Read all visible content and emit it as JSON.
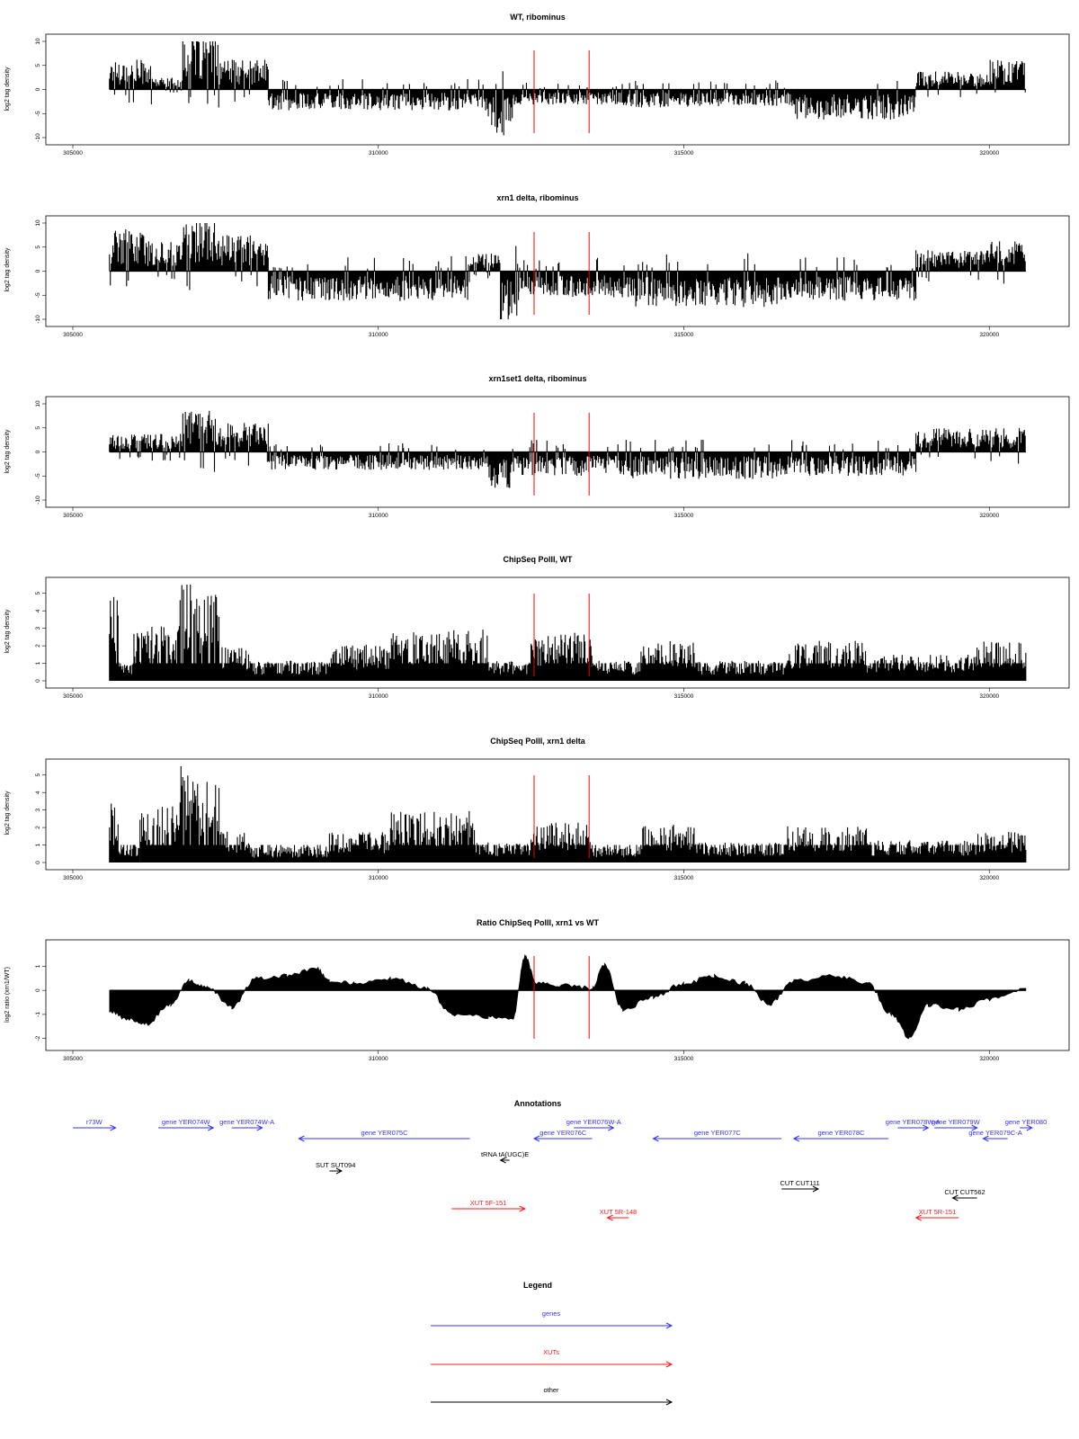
{
  "chart_data": [
    {
      "type": "bar",
      "title": "WT, ribominus",
      "ylabel": "log2 tag density",
      "xlim": [
        305000,
        320600
      ],
      "ylim": [
        -10,
        10
      ],
      "xticks": [
        "305000",
        "310000",
        "315000",
        "320000"
      ],
      "yticks": [
        "-10",
        "-5",
        "0",
        "5",
        "10"
      ],
      "markers_x": [
        312550,
        313450
      ],
      "profile": [
        {
          "from": 305600,
          "to": 306300,
          "level": 5
        },
        {
          "from": 306300,
          "to": 306800,
          "level": 2
        },
        {
          "from": 306800,
          "to": 307400,
          "level": 9
        },
        {
          "from": 307400,
          "to": 308200,
          "level": 5
        },
        {
          "from": 308200,
          "to": 311800,
          "level": -3.5
        },
        {
          "from": 311800,
          "to": 312200,
          "level": -8
        },
        {
          "from": 312200,
          "to": 314000,
          "level": -2.5
        },
        {
          "from": 314000,
          "to": 316800,
          "level": -3
        },
        {
          "from": 316800,
          "to": 318800,
          "level": -5
        },
        {
          "from": 318800,
          "to": 320000,
          "level": 3
        },
        {
          "from": 320000,
          "to": 320600,
          "level": 5
        }
      ]
    },
    {
      "type": "bar",
      "title": "xrn1 delta, ribominus",
      "ylabel": "log2 tag density",
      "xlim": [
        305000,
        320600
      ],
      "ylim": [
        -10,
        10
      ],
      "xticks": [
        "305000",
        "310000",
        "315000",
        "320000"
      ],
      "yticks": [
        "-10",
        "-5",
        "0",
        "5",
        "10"
      ],
      "markers_x": [
        312550,
        313450
      ],
      "profile": [
        {
          "from": 305600,
          "to": 306200,
          "level": 7
        },
        {
          "from": 306200,
          "to": 306800,
          "level": 5
        },
        {
          "from": 306800,
          "to": 307400,
          "level": 9
        },
        {
          "from": 307400,
          "to": 308200,
          "level": 6
        },
        {
          "from": 308200,
          "to": 311500,
          "level": -5
        },
        {
          "from": 311500,
          "to": 312000,
          "level": 3
        },
        {
          "from": 312000,
          "to": 312300,
          "level": -9
        },
        {
          "from": 312300,
          "to": 314200,
          "level": -4.5
        },
        {
          "from": 314200,
          "to": 316600,
          "level": -6
        },
        {
          "from": 316600,
          "to": 318800,
          "level": -5
        },
        {
          "from": 318800,
          "to": 320000,
          "level": 3.5
        },
        {
          "from": 320000,
          "to": 320600,
          "level": 5
        }
      ]
    },
    {
      "type": "bar",
      "title": "xrn1set1 delta, ribominus",
      "ylabel": "log2 tag density",
      "xlim": [
        305000,
        320600
      ],
      "ylim": [
        -10,
        10
      ],
      "xticks": [
        "305000",
        "310000",
        "315000",
        "320000"
      ],
      "yticks": [
        "-10",
        "-5",
        "0",
        "5",
        "10"
      ],
      "markers_x": [
        312550,
        313450
      ],
      "profile": [
        {
          "from": 305600,
          "to": 306300,
          "level": 3
        },
        {
          "from": 306300,
          "to": 306800,
          "level": 3
        },
        {
          "from": 306800,
          "to": 307400,
          "level": 7
        },
        {
          "from": 307400,
          "to": 308200,
          "level": 5
        },
        {
          "from": 308200,
          "to": 311800,
          "level": -3
        },
        {
          "from": 311800,
          "to": 312200,
          "level": -6
        },
        {
          "from": 312200,
          "to": 314000,
          "level": -4
        },
        {
          "from": 314000,
          "to": 316600,
          "level": -4.5
        },
        {
          "from": 316600,
          "to": 318800,
          "level": -4
        },
        {
          "from": 318800,
          "to": 320000,
          "level": 4
        },
        {
          "from": 320000,
          "to": 320600,
          "level": 4
        }
      ]
    },
    {
      "type": "bar",
      "title": "ChipSeq PolII, WT",
      "ylabel": "log2 tag density",
      "xlim": [
        305000,
        320600
      ],
      "ylim": [
        0,
        5.5
      ],
      "xticks": [
        "305000",
        "310000",
        "315000",
        "320000"
      ],
      "yticks": [
        "0",
        "1",
        "2",
        "3",
        "4",
        "5"
      ],
      "markers_x": [
        312550,
        313450
      ],
      "profile": [
        {
          "from": 305600,
          "to": 305750,
          "level": 4.2
        },
        {
          "from": 305750,
          "to": 306000,
          "level": 1
        },
        {
          "from": 306000,
          "to": 306700,
          "level": 2.7
        },
        {
          "from": 306700,
          "to": 307000,
          "level": 5
        },
        {
          "from": 307000,
          "to": 307400,
          "level": 4.3
        },
        {
          "from": 307400,
          "to": 307900,
          "level": 1.8
        },
        {
          "from": 307900,
          "to": 309200,
          "level": 1
        },
        {
          "from": 309200,
          "to": 310200,
          "level": 1.8
        },
        {
          "from": 310200,
          "to": 311800,
          "level": 2.6
        },
        {
          "from": 311800,
          "to": 312500,
          "level": 1
        },
        {
          "from": 312500,
          "to": 313500,
          "level": 2.4
        },
        {
          "from": 313500,
          "to": 314300,
          "level": 1
        },
        {
          "from": 314300,
          "to": 315200,
          "level": 2
        },
        {
          "from": 315200,
          "to": 316700,
          "level": 1
        },
        {
          "from": 316700,
          "to": 318000,
          "level": 2
        },
        {
          "from": 318000,
          "to": 319800,
          "level": 1.3
        },
        {
          "from": 319800,
          "to": 320600,
          "level": 2
        }
      ]
    },
    {
      "type": "bar",
      "title": "ChipSeq PolII, xrn1 delta",
      "ylabel": "log2 tag density",
      "xlim": [
        305000,
        320600
      ],
      "ylim": [
        0,
        5.5
      ],
      "xticks": [
        "305000",
        "310000",
        "315000",
        "320000"
      ],
      "yticks": [
        "0",
        "1",
        "2",
        "3",
        "4",
        "5"
      ],
      "markers_x": [
        312550,
        313450
      ],
      "profile": [
        {
          "from": 305600,
          "to": 305750,
          "level": 3
        },
        {
          "from": 305750,
          "to": 306100,
          "level": 0.8
        },
        {
          "from": 306100,
          "to": 306700,
          "level": 2.8
        },
        {
          "from": 306700,
          "to": 307000,
          "level": 4.9
        },
        {
          "from": 307000,
          "to": 307400,
          "level": 4.2
        },
        {
          "from": 307400,
          "to": 307900,
          "level": 1.6
        },
        {
          "from": 307900,
          "to": 309200,
          "level": 0.8
        },
        {
          "from": 309200,
          "to": 310200,
          "level": 1.5
        },
        {
          "from": 310200,
          "to": 311600,
          "level": 2.6
        },
        {
          "from": 311600,
          "to": 312500,
          "level": 1
        },
        {
          "from": 312500,
          "to": 313500,
          "level": 2
        },
        {
          "from": 313500,
          "to": 314300,
          "level": 0.8
        },
        {
          "from": 314300,
          "to": 315200,
          "level": 1.9
        },
        {
          "from": 315200,
          "to": 316700,
          "level": 1
        },
        {
          "from": 316700,
          "to": 318000,
          "level": 1.8
        },
        {
          "from": 318000,
          "to": 319800,
          "level": 1.1
        },
        {
          "from": 319800,
          "to": 320600,
          "level": 1.6
        }
      ]
    },
    {
      "type": "area",
      "title": "Ratio ChipSeq PolII, xrn1 vs WT",
      "ylabel": "log2 ratio (xrn1/WT)",
      "xlim": [
        305000,
        320600
      ],
      "ylim": [
        -2.2,
        1.8
      ],
      "xticks": [
        "305000",
        "310000",
        "315000",
        "320000"
      ],
      "yticks": [
        "-2",
        "-1",
        "0",
        "1"
      ],
      "markers_x": [
        312550,
        313450
      ],
      "profile": [
        {
          "x": 305600,
          "y": -0.9
        },
        {
          "x": 305900,
          "y": -1.2
        },
        {
          "x": 306200,
          "y": -1.4
        },
        {
          "x": 306600,
          "y": -0.6
        },
        {
          "x": 306900,
          "y": 0.4
        },
        {
          "x": 307200,
          "y": 0.1
        },
        {
          "x": 307600,
          "y": -0.7
        },
        {
          "x": 308000,
          "y": 0.5
        },
        {
          "x": 308500,
          "y": 0.6
        },
        {
          "x": 309000,
          "y": 0.9
        },
        {
          "x": 309200,
          "y": 0.4
        },
        {
          "x": 309600,
          "y": 0.3
        },
        {
          "x": 310200,
          "y": 0.5
        },
        {
          "x": 310800,
          "y": 0.1
        },
        {
          "x": 311200,
          "y": -1
        },
        {
          "x": 311800,
          "y": -1.1
        },
        {
          "x": 312200,
          "y": -1.2
        },
        {
          "x": 312400,
          "y": 1.4
        },
        {
          "x": 312600,
          "y": 0.3
        },
        {
          "x": 313000,
          "y": 0.2
        },
        {
          "x": 313500,
          "y": 0.1
        },
        {
          "x": 313700,
          "y": 1.1
        },
        {
          "x": 314000,
          "y": -0.8
        },
        {
          "x": 314500,
          "y": -0.3
        },
        {
          "x": 315000,
          "y": 0.3
        },
        {
          "x": 315500,
          "y": 0.6
        },
        {
          "x": 316000,
          "y": 0.3
        },
        {
          "x": 316400,
          "y": -0.6
        },
        {
          "x": 316800,
          "y": 0.4
        },
        {
          "x": 317500,
          "y": 0.6
        },
        {
          "x": 318000,
          "y": 0.3
        },
        {
          "x": 318400,
          "y": -1
        },
        {
          "x": 318700,
          "y": -2
        },
        {
          "x": 319000,
          "y": -0.6
        },
        {
          "x": 319500,
          "y": -0.8
        },
        {
          "x": 320000,
          "y": -0.4
        },
        {
          "x": 320600,
          "y": 0.1
        }
      ]
    }
  ],
  "annotations": {
    "title": "Annotations",
    "xlim": [
      305000,
      320600
    ],
    "features": [
      {
        "label": "r73W",
        "kind": "gene",
        "start": 305000,
        "end": 305700,
        "dir": "right",
        "row": 0
      },
      {
        "label": "gene YER074W",
        "kind": "gene",
        "start": 306400,
        "end": 307300,
        "dir": "right",
        "row": 0
      },
      {
        "label": "gene YER074W-A",
        "kind": "gene",
        "start": 307600,
        "end": 308100,
        "dir": "right",
        "row": 0
      },
      {
        "label": "gene YER075C",
        "kind": "gene",
        "start": 308700,
        "end": 311500,
        "dir": "left",
        "row": 1
      },
      {
        "label": "gene YER076W-A",
        "kind": "gene",
        "start": 313200,
        "end": 313850,
        "dir": "right",
        "row": 0
      },
      {
        "label": "gene YER076C",
        "kind": "gene",
        "start": 312550,
        "end": 313500,
        "dir": "left",
        "row": 1
      },
      {
        "label": "tRNA tA(UGC)E",
        "kind": "other",
        "start": 312000,
        "end": 312100,
        "dir": "left",
        "row": 2
      },
      {
        "label": "gene YER077C",
        "kind": "gene",
        "start": 314500,
        "end": 316600,
        "dir": "left",
        "row": 1
      },
      {
        "label": "gene YER078C",
        "kind": "gene",
        "start": 316800,
        "end": 318350,
        "dir": "left",
        "row": 1
      },
      {
        "label": "gene YER078W-A",
        "kind": "gene",
        "start": 318500,
        "end": 319000,
        "dir": "right",
        "row": 0
      },
      {
        "label": "gene YER079W",
        "kind": "gene",
        "start": 319100,
        "end": 319800,
        "dir": "right",
        "row": 0
      },
      {
        "label": "gene YER079C-A",
        "kind": "gene",
        "start": 319900,
        "end": 320300,
        "dir": "left",
        "row": 1
      },
      {
        "label": "gene YER080",
        "kind": "gene",
        "start": 320500,
        "end": 320700,
        "dir": "right",
        "row": 0
      },
      {
        "label": "SUT SUT094",
        "kind": "other",
        "start": 309200,
        "end": 309400,
        "dir": "right",
        "row": 3
      },
      {
        "label": "CUT CUT111",
        "kind": "other",
        "start": 316600,
        "end": 317200,
        "dir": "right",
        "row": 4
      },
      {
        "label": "CUT CUT562",
        "kind": "other",
        "start": 319400,
        "end": 319800,
        "dir": "left",
        "row": 5
      },
      {
        "label": "XUT 5F-151",
        "kind": "xut",
        "start": 311200,
        "end": 312400,
        "dir": "right",
        "row": 6
      },
      {
        "label": "XUT 5R-148",
        "kind": "xut",
        "start": 313750,
        "end": 314100,
        "dir": "left",
        "row": 7
      },
      {
        "label": "XUT 5R-151",
        "kind": "xut",
        "start": 318800,
        "end": 319500,
        "dir": "left",
        "row": 7
      }
    ]
  },
  "legend": {
    "title": "Legend",
    "items": [
      {
        "label": "genes",
        "color": "#3333ff"
      },
      {
        "label": "XUTs",
        "color": "#ff1a1a"
      },
      {
        "label": "other",
        "color": "#000000"
      }
    ]
  },
  "colors": {
    "bars": "#000000",
    "marker": "#ff0000",
    "gene": "#3333ff",
    "xut": "#ff1a1a",
    "other": "#000000"
  }
}
